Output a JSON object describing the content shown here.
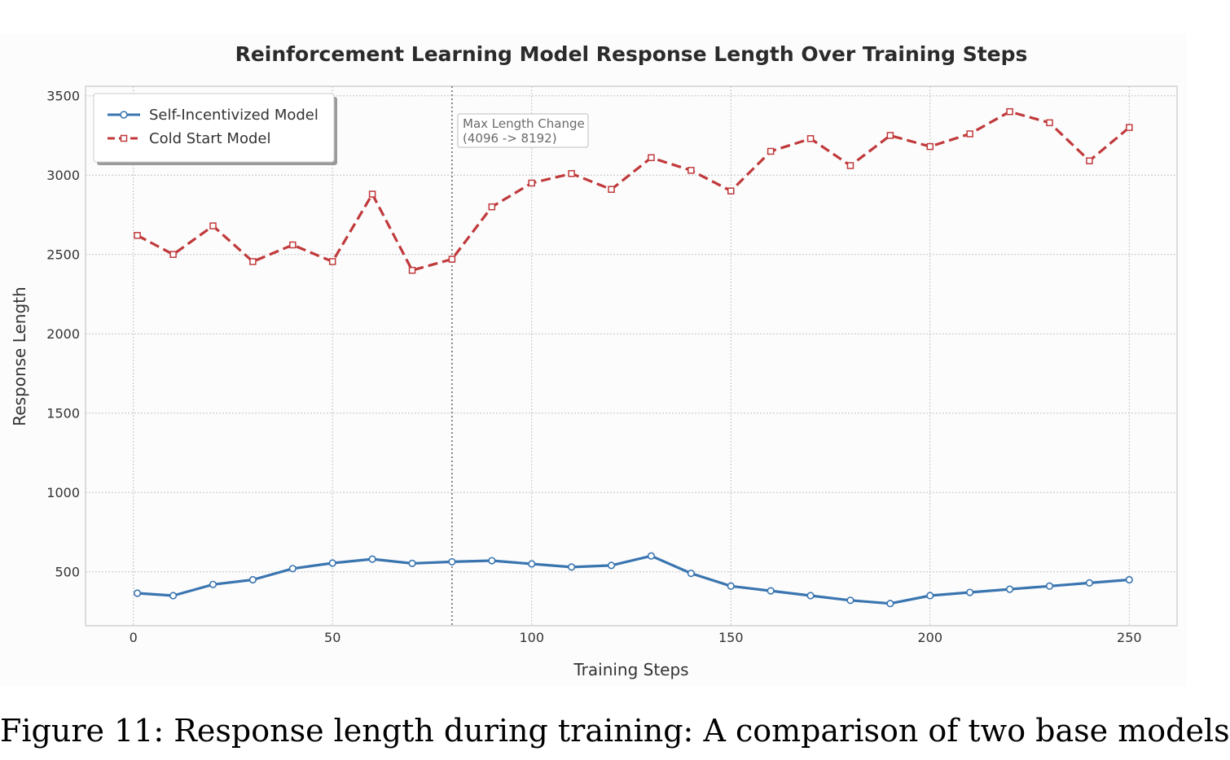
{
  "caption": "Figure 11: Response length during training: A comparison of two base models",
  "chart_data": {
    "type": "line",
    "title": "Reinforcement Learning Model Response Length Over Training Steps",
    "xlabel": "Training Steps",
    "ylabel": "Response Length",
    "xlim": [
      -12,
      262
    ],
    "ylim": [
      160,
      3560
    ],
    "x_ticks": [
      0,
      50,
      100,
      150,
      200,
      250
    ],
    "y_ticks": [
      500,
      1000,
      1500,
      2000,
      2500,
      3000,
      3500
    ],
    "grid": true,
    "legend_position": "top-left",
    "x": [
      1,
      10,
      20,
      30,
      40,
      50,
      60,
      70,
      80,
      90,
      100,
      110,
      120,
      130,
      140,
      150,
      160,
      170,
      180,
      190,
      200,
      210,
      220,
      230,
      240,
      250
    ],
    "series": [
      {
        "name": "Self-Incentivized Model",
        "color": "#3a75b0",
        "line_style": "solid",
        "marker": "circle",
        "values": [
          365,
          350,
          420,
          450,
          520,
          555,
          580,
          553,
          563,
          570,
          550,
          530,
          540,
          600,
          490,
          410,
          380,
          350,
          320,
          300,
          350,
          370,
          390,
          410,
          430,
          450
        ]
      },
      {
        "name": "Cold Start Model",
        "color": "#c0393b",
        "line_style": "dashed",
        "marker": "square",
        "values": [
          2620,
          2500,
          2680,
          2455,
          2560,
          2455,
          2880,
          2400,
          2470,
          2800,
          2950,
          3010,
          2910,
          3110,
          3030,
          2900,
          3150,
          3230,
          3060,
          3250,
          3180,
          3260,
          3400,
          3330,
          3090,
          3300
        ]
      }
    ],
    "vline": {
      "x": 80,
      "label_line1": "Max Length Change",
      "label_line2": "(4096 -> 8192)"
    }
  }
}
